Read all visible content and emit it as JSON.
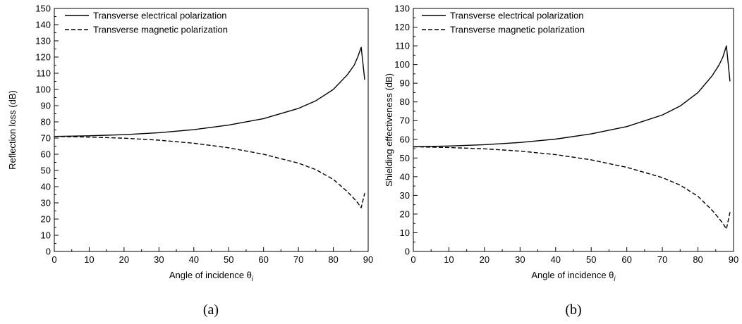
{
  "chart_data": [
    {
      "type": "line",
      "caption": "(a)",
      "xlabel": "Angle of incidence θ",
      "xlabel_sub": "i",
      "ylabel": "Reflection loss (dB)",
      "xlim": [
        0,
        90
      ],
      "ylim": [
        0,
        150
      ],
      "xticks": [
        0,
        10,
        20,
        30,
        40,
        50,
        60,
        70,
        80,
        90
      ],
      "yticks": [
        0,
        10,
        20,
        30,
        40,
        50,
        60,
        70,
        80,
        90,
        100,
        110,
        120,
        130,
        140,
        150
      ],
      "legend": "top-left",
      "series": [
        {
          "name": "Transverse electrical polarization",
          "style": "solid",
          "x": [
            0,
            10,
            20,
            30,
            40,
            50,
            60,
            70,
            75,
            80,
            84,
            86,
            87,
            88,
            89
          ],
          "y": [
            71,
            71.4,
            72.1,
            73.3,
            75.2,
            78,
            82,
            88.3,
            93,
            100,
            109,
            115,
            120,
            126,
            106
          ]
        },
        {
          "name": "Transverse magnetic polarization",
          "style": "dashed",
          "x": [
            0,
            10,
            20,
            30,
            40,
            50,
            60,
            70,
            75,
            80,
            84,
            86,
            87,
            88,
            89
          ],
          "y": [
            71,
            70.6,
            69.9,
            68.7,
            66.8,
            64,
            60,
            54.5,
            50.5,
            44.5,
            37,
            32.5,
            30,
            27,
            36
          ]
        }
      ]
    },
    {
      "type": "line",
      "caption": "(b)",
      "xlabel": "Angle of incidence θ",
      "xlabel_sub": "i",
      "ylabel": "Shielding effectiveness (dB)",
      "xlim": [
        0,
        90
      ],
      "ylim": [
        0,
        130
      ],
      "xticks": [
        0,
        10,
        20,
        30,
        40,
        50,
        60,
        70,
        80,
        90
      ],
      "yticks": [
        0,
        10,
        20,
        30,
        40,
        50,
        60,
        70,
        80,
        90,
        100,
        110,
        120,
        130
      ],
      "legend": "top-left",
      "series": [
        {
          "name": "Transverse electrical polarization",
          "style": "solid",
          "x": [
            0,
            10,
            20,
            30,
            40,
            50,
            60,
            70,
            75,
            80,
            84,
            86,
            87,
            88,
            89
          ],
          "y": [
            56,
            56.4,
            57.1,
            58.3,
            60.1,
            62.9,
            66.8,
            73,
            77.8,
            85,
            94,
            100,
            104,
            110,
            91
          ]
        },
        {
          "name": "Transverse magnetic polarization",
          "style": "dashed",
          "x": [
            0,
            10,
            20,
            30,
            40,
            50,
            60,
            70,
            75,
            80,
            84,
            86,
            87,
            88,
            89
          ],
          "y": [
            56,
            55.6,
            54.9,
            53.7,
            51.8,
            49,
            45,
            39.5,
            35.5,
            29.5,
            22,
            17.5,
            15,
            12,
            21
          ]
        }
      ]
    }
  ]
}
